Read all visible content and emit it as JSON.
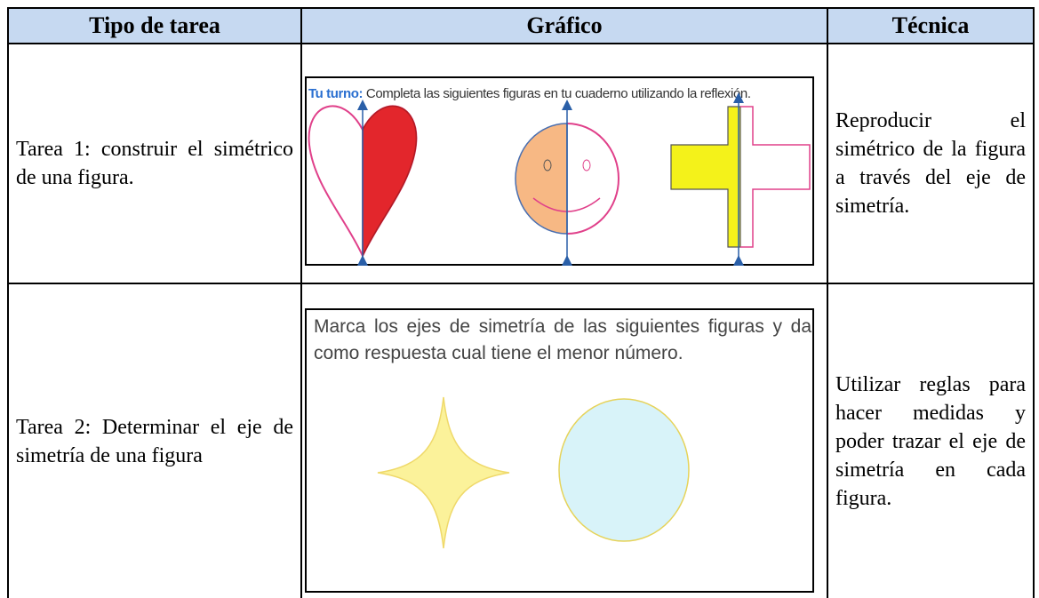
{
  "table": {
    "headers": [
      "Tipo de tarea",
      "Gráfico",
      "Técnica"
    ],
    "rows": [
      {
        "task": "Tarea 1: construir el simétrico de una figura.",
        "graphic": {
          "label": "Tu turno:",
          "instruction": "Completa las siguientes figuras en tu cuaderno utilizando la reflexión."
        },
        "technique": "Reproducir el simétrico de la figura a través del eje de simetría."
      },
      {
        "task": "Tarea 2: Determinar el eje de simetría de una figura",
        "graphic": {
          "instruction": "Marca los ejes de simetría de las siguientes figuras y da como respuesta cual tiene el menor número."
        },
        "technique": "Utilizar reglas para hacer medidas y poder trazar el eje de simetría en cada figura."
      }
    ]
  }
}
